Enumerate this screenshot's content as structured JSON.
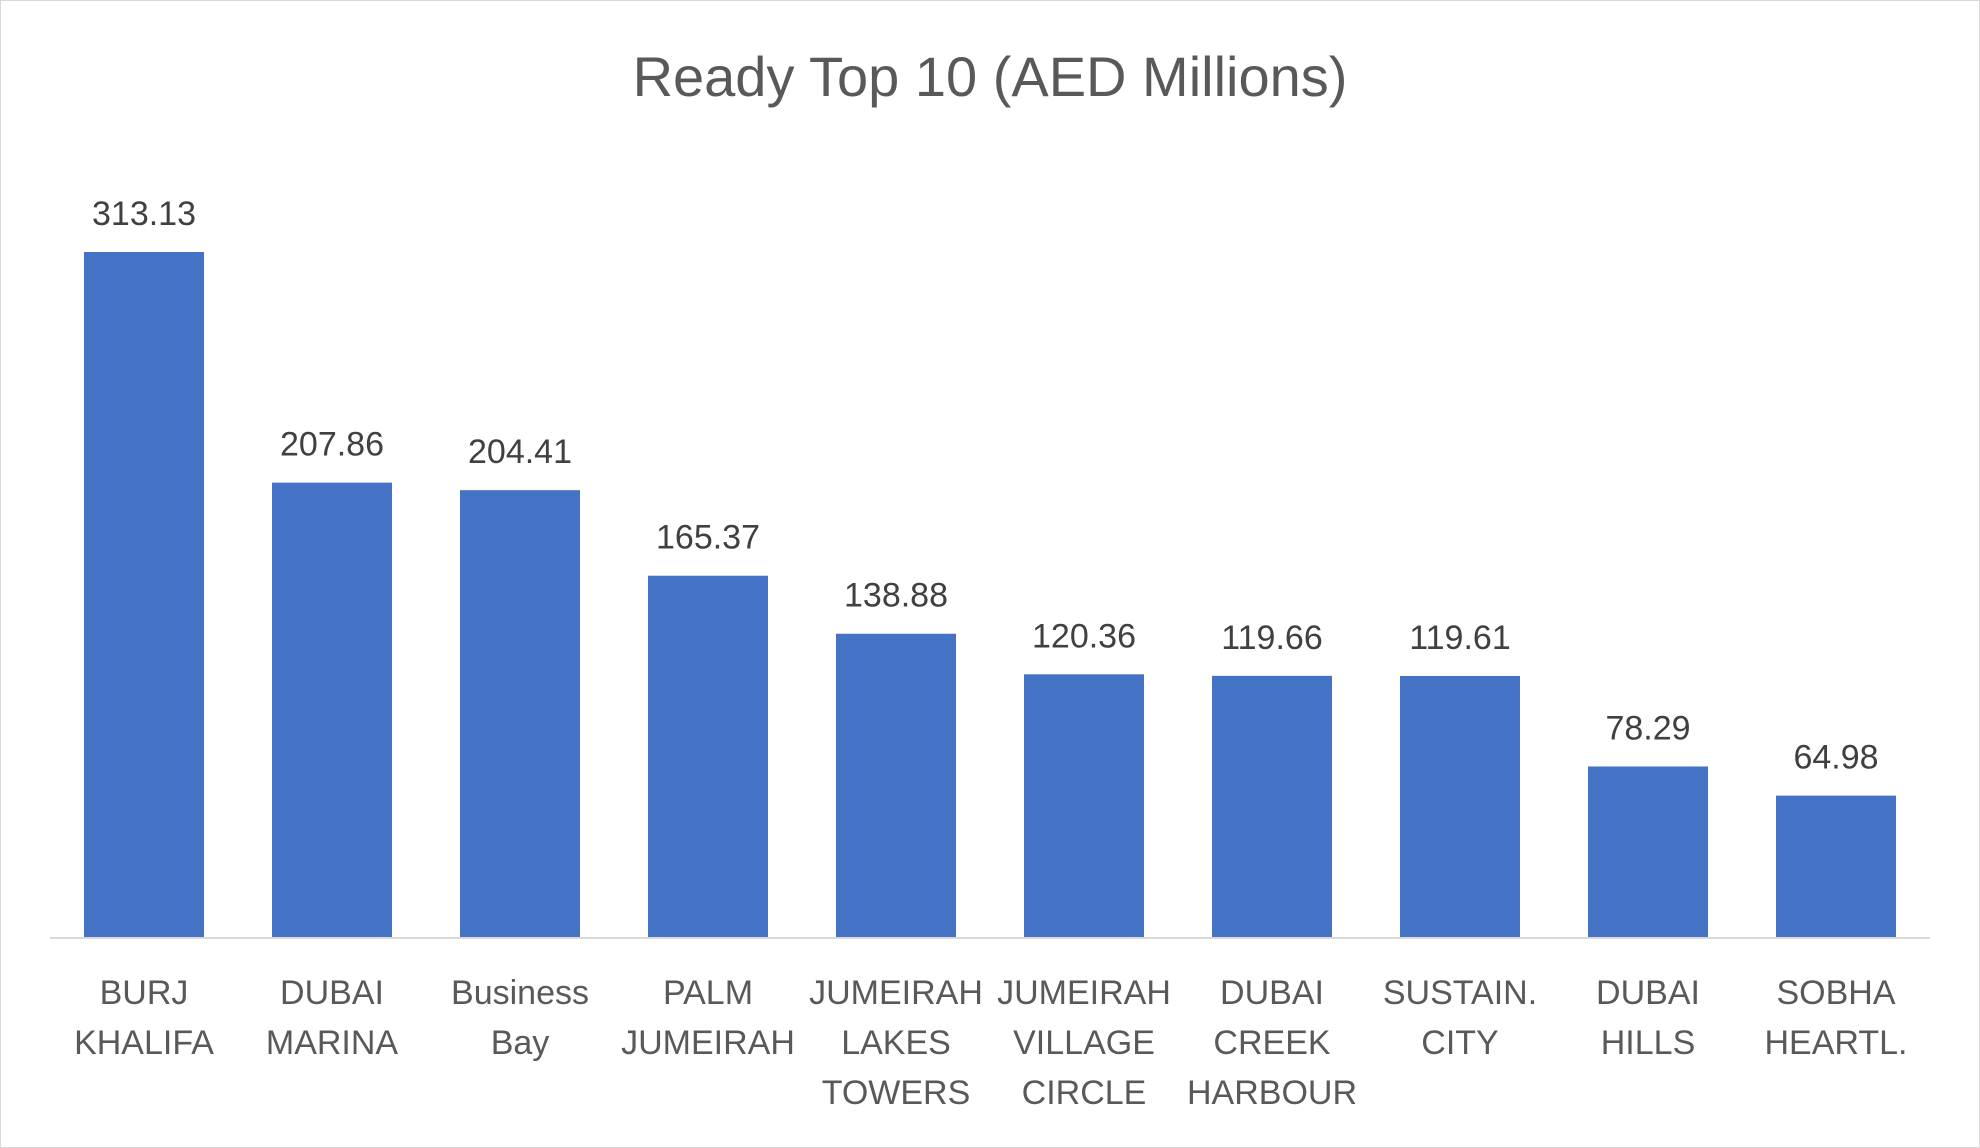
{
  "chart_data": {
    "type": "bar",
    "title": "Ready Top 10 (AED Millions)",
    "xlabel": "",
    "ylabel": "",
    "categories": [
      [
        "BURJ",
        "KHALIFA"
      ],
      [
        "DUBAI",
        "MARINA"
      ],
      [
        "Business",
        "Bay"
      ],
      [
        "PALM",
        "JUMEIRAH"
      ],
      [
        "JUMEIRAH",
        "LAKES",
        "TOWERS"
      ],
      [
        "JUMEIRAH",
        "VILLAGE",
        "CIRCLE"
      ],
      [
        "DUBAI",
        "CREEK",
        "HARBOUR"
      ],
      [
        "SUSTAIN.",
        "CITY"
      ],
      [
        "DUBAI",
        "HILLS"
      ],
      [
        "SOBHA",
        "HEARTL."
      ]
    ],
    "values": [
      313.13,
      207.86,
      204.41,
      165.37,
      138.88,
      120.36,
      119.66,
      119.61,
      78.29,
      64.98
    ],
    "data_labels": [
      "313.13",
      "207.86",
      "204.41",
      "165.37",
      "138.88",
      "120.36",
      "119.66",
      "119.61",
      "78.29",
      "64.98"
    ],
    "ylim": [
      0,
      313.13
    ],
    "grid": false,
    "legend": "none",
    "colors": {
      "bar": "#4472C4",
      "axis": "#d9d9d9"
    }
  }
}
